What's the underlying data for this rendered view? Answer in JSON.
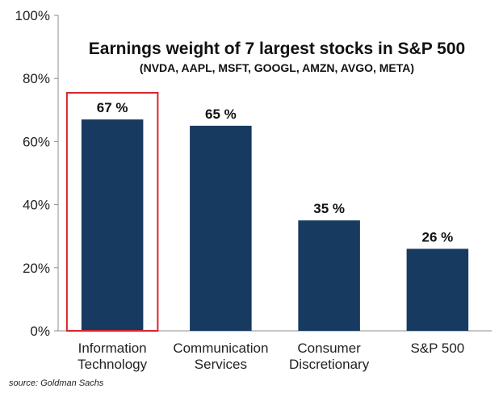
{
  "chart_data": {
    "type": "bar",
    "title": "Earnings weight of 7 largest stocks in S&P 500",
    "subtitle": "(NVDA, AAPL,  MSFT, GOOGL, AMZN, AVGO, META)",
    "categories": [
      [
        "Information",
        "Technology"
      ],
      [
        "Communication",
        "Services"
      ],
      [
        "Consumer",
        "Discretionary"
      ],
      [
        "S&P 500"
      ]
    ],
    "values": [
      67,
      65,
      35,
      26
    ],
    "data_labels": [
      "67 %",
      "65 %",
      "35 %",
      "26 %"
    ],
    "yticks": [
      0,
      20,
      40,
      60,
      80,
      100
    ],
    "ytick_labels": [
      "0%",
      "20%",
      "40%",
      "60%",
      "80%",
      "100%"
    ],
    "ylim": [
      0,
      100
    ],
    "xlabel": "",
    "ylabel": "",
    "highlighted_index": 0,
    "bar_color": "#173a61",
    "highlight_color": "#d9252a"
  },
  "source": "source: Goldman Sachs"
}
